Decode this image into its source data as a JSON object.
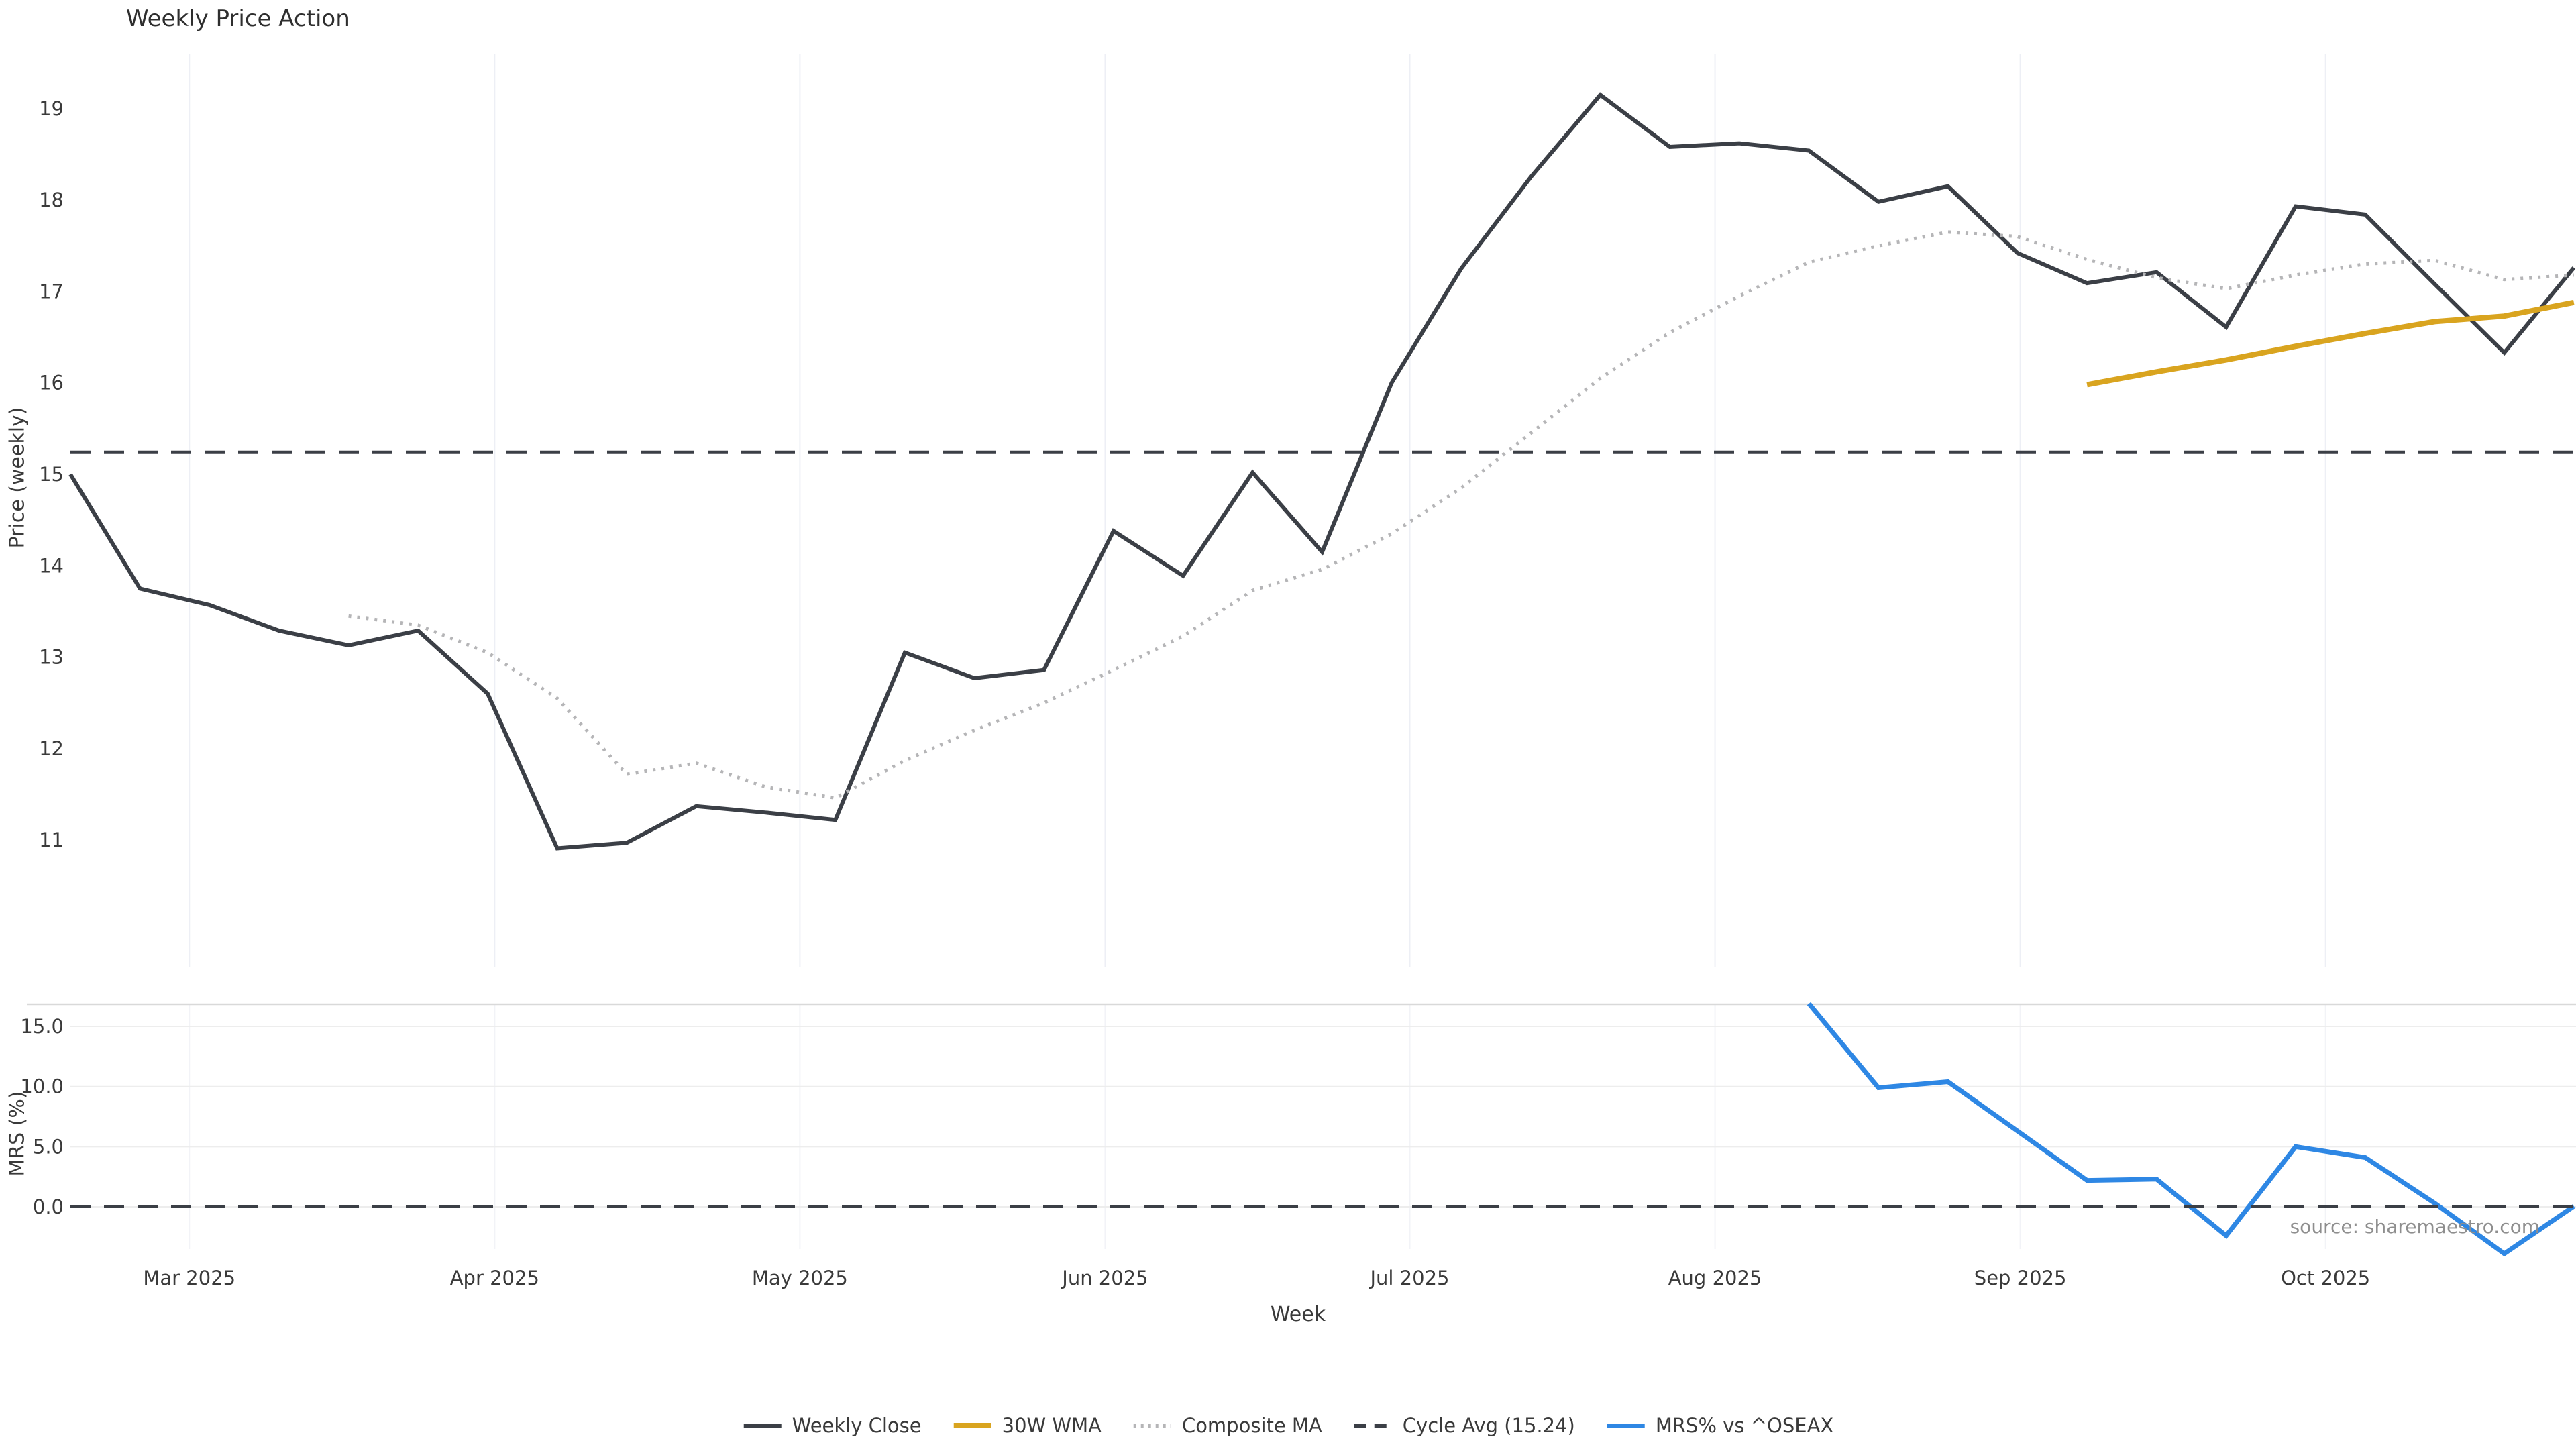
{
  "chart": {
    "title": "Weekly Price Action",
    "source": "source: sharemaestro.com"
  },
  "legend": {
    "items": [
      {
        "label": "Weekly Close",
        "color": "#3b3f46",
        "style": "solid"
      },
      {
        "label": "30W WMA",
        "color": "#d9a41f",
        "style": "solid"
      },
      {
        "label": "Composite MA",
        "color": "#b5b5b7",
        "style": "dotted"
      },
      {
        "label": "Cycle Avg (15.24)",
        "color": "#3b3f46",
        "style": "dashed"
      },
      {
        "label": "MRS% vs ^OSEAX",
        "color": "#2e87e4",
        "style": "solid"
      }
    ]
  },
  "chart_data": {
    "type": "line",
    "title": "Weekly Price Action",
    "xlabel": "Week",
    "x_axis": {
      "unit": "week",
      "total_weeks": 37,
      "months": [
        {
          "label": "Mar 2025",
          "week": 1.71
        },
        {
          "label": "Apr 2025",
          "week": 6.1
        },
        {
          "label": "May 2025",
          "week": 10.49
        },
        {
          "label": "Jun 2025",
          "week": 14.88
        },
        {
          "label": "Jul 2025",
          "week": 19.26
        },
        {
          "label": "Aug 2025",
          "week": 23.65
        },
        {
          "label": "Sep 2025",
          "week": 28.04
        },
        {
          "label": "Oct 2025",
          "week": 32.43
        }
      ]
    },
    "panels": [
      {
        "id": "price",
        "ylabel": "Price (weekly)",
        "ylim": [
          10.4,
          19.6
        ],
        "yticks": [
          11,
          12,
          13,
          14,
          15,
          16,
          17,
          18,
          19
        ],
        "ytick_labels": [
          "11",
          "12",
          "13",
          "14",
          "15",
          "16",
          "17",
          "18",
          "19"
        ],
        "grid": "vertical-months",
        "series": [
          {
            "name": "Weekly Close",
            "style": "solid",
            "color": "#3b3f46",
            "width": 6,
            "start_week": 0,
            "values": [
              15.0,
              13.75,
              13.57,
              13.29,
              13.13,
              13.29,
              12.6,
              10.91,
              10.97,
              11.37,
              11.3,
              11.22,
              13.05,
              12.77,
              12.86,
              14.38,
              13.89,
              15.02,
              14.15,
              16.0,
              17.25,
              18.25,
              19.15,
              18.58,
              18.62,
              18.54,
              17.98,
              18.15,
              17.42,
              17.09,
              17.21,
              16.61,
              17.93,
              17.84,
              17.08,
              16.33,
              17.26
            ]
          },
          {
            "name": "30W WMA",
            "style": "solid",
            "color": "#d9a41f",
            "width": 8,
            "start_week": 29,
            "values": [
              15.98,
              16.12,
              16.25,
              16.4,
              16.54,
              16.67,
              16.73,
              16.88
            ]
          },
          {
            "name": "Composite MA",
            "style": "dotted",
            "color": "#b5b5b7",
            "width": 5,
            "start_week": 4,
            "values": [
              13.45,
              13.35,
              13.05,
              12.55,
              11.72,
              11.84,
              11.58,
              11.46,
              11.87,
              12.2,
              12.5,
              12.86,
              13.23,
              13.73,
              13.96,
              14.35,
              14.85,
              15.45,
              16.05,
              16.55,
              16.95,
              17.32,
              17.5,
              17.65,
              17.6,
              17.35,
              17.15,
              17.03,
              17.18,
              17.3,
              17.34,
              17.13,
              17.18
            ]
          },
          {
            "name": "Cycle Avg (15.24)",
            "style": "dashed",
            "color": "#3b3f46",
            "width": 5,
            "hline": 15.24
          }
        ]
      },
      {
        "id": "mrs",
        "ylabel": "MRS (%)",
        "ylim": [
          -5.6,
          17.0
        ],
        "yticks": [
          0,
          5,
          10,
          15
        ],
        "ytick_labels": [
          "0.0",
          "5.0",
          "10.0",
          "15.0"
        ],
        "grid": "horizontal-ticks",
        "series": [
          {
            "name": "MRS% vs ^OSEAX",
            "style": "solid",
            "color": "#2e87e4",
            "width": 7,
            "start_week": 25,
            "values": [
              16.9,
              9.9,
              10.4,
              6.3,
              2.2,
              2.3,
              -2.4,
              5.0,
              4.1,
              0.3,
              -3.9,
              0.05
            ]
          },
          {
            "name": "Zero line",
            "style": "dashed",
            "color": "#3b3f46",
            "width": 4,
            "hline": 0.0
          }
        ]
      }
    ]
  }
}
